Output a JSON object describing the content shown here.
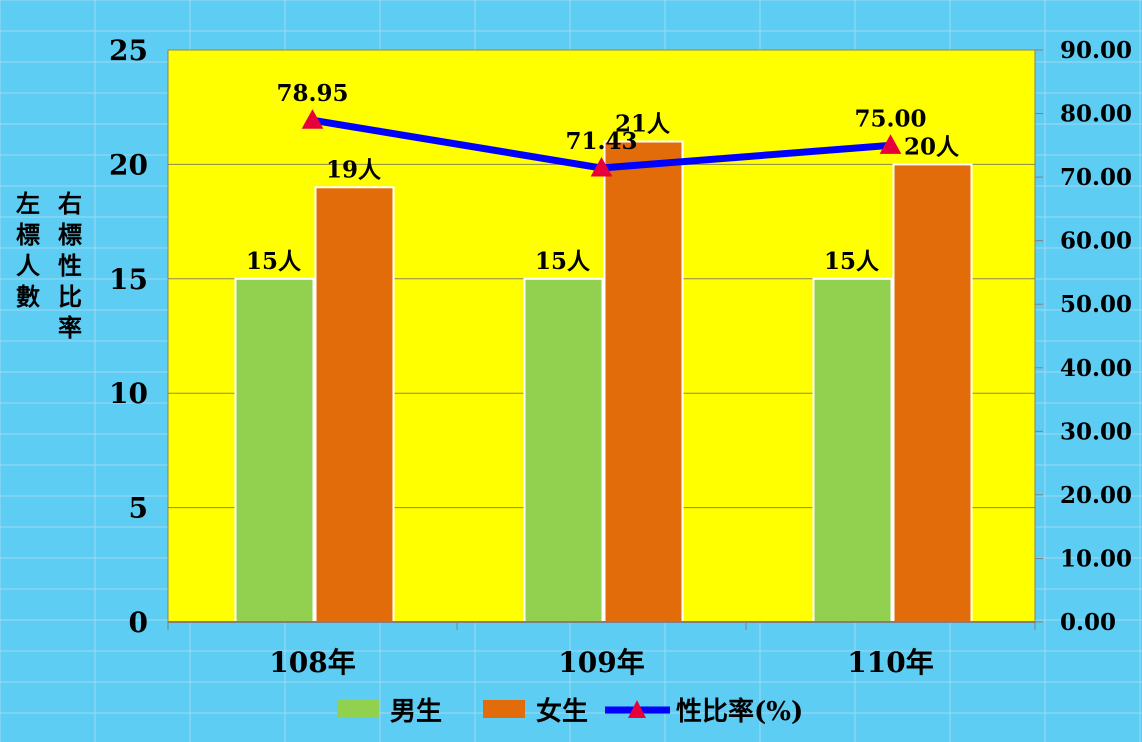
{
  "chart_data": {
    "type": "bar",
    "categories": [
      "108年",
      "109年",
      "110年"
    ],
    "series": [
      {
        "name": "男生",
        "kind": "bar",
        "axis": "left",
        "color": "#92d050",
        "values": [
          15,
          15,
          15
        ],
        "labels": [
          "15人",
          "15人",
          "15人"
        ]
      },
      {
        "name": "女生",
        "kind": "bar",
        "axis": "left",
        "color": "#e36c0a",
        "values": [
          19,
          21,
          20
        ],
        "labels": [
          "19人",
          "21人",
          "20人"
        ]
      },
      {
        "name": "性比率(%)",
        "kind": "line",
        "axis": "right",
        "color": "#0000ff",
        "marker_color": "#e8003a",
        "values": [
          78.95,
          71.43,
          75.0
        ],
        "labels": [
          "78.95",
          "71.43",
          "75.00"
        ]
      }
    ],
    "y_left": {
      "range": [
        0,
        25
      ],
      "ticks": [
        "0",
        "5",
        "10",
        "15",
        "20",
        "25"
      ],
      "label_chars": [
        "左",
        "標",
        "人",
        "數"
      ]
    },
    "y_right": {
      "range": [
        0,
        90
      ],
      "ticks": [
        "0.00",
        "10.00",
        "20.00",
        "30.00",
        "40.00",
        "50.00",
        "60.00",
        "70.00",
        "80.00",
        "90.00"
      ],
      "label_chars": [
        "右",
        "標",
        "性",
        "比",
        "率"
      ]
    },
    "legend": {
      "placement": "bottom-center",
      "items": [
        "男生",
        "女生",
        "性比率(%)"
      ]
    },
    "colors": {
      "plot_background": "#ffff00",
      "background": "#5ecdf3",
      "gridline": "#8a8a50"
    },
    "grid": true
  }
}
